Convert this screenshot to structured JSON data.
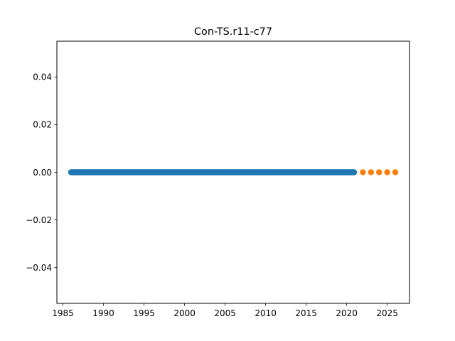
{
  "chart_data": {
    "type": "scatter",
    "title": "Con-TS.r11-c77",
    "xlabel": "",
    "ylabel": "",
    "xlim": [
      1984.25,
      2027.75
    ],
    "ylim": [
      -0.055,
      0.055
    ],
    "x_ticks": [
      1985,
      1990,
      1995,
      2000,
      2005,
      2010,
      2015,
      2020,
      2025
    ],
    "y_ticks": [
      -0.04,
      -0.02,
      0.0,
      0.02,
      0.04
    ],
    "y_tick_labels": [
      "−0.04",
      "−0.02",
      "0.00",
      "0.02",
      "0.04"
    ],
    "grid": false,
    "series": [
      {
        "color": "#1f77b4",
        "x_start": 1986.0,
        "x_end": 2020.9167,
        "x_step": 0.08333,
        "y_constant": 0.0
      },
      {
        "color": "#ff7f0e",
        "x": [
          2022,
          2023,
          2024,
          2025,
          2026
        ],
        "y": [
          0.0,
          0.0,
          0.0,
          0.0,
          0.0
        ]
      }
    ]
  }
}
